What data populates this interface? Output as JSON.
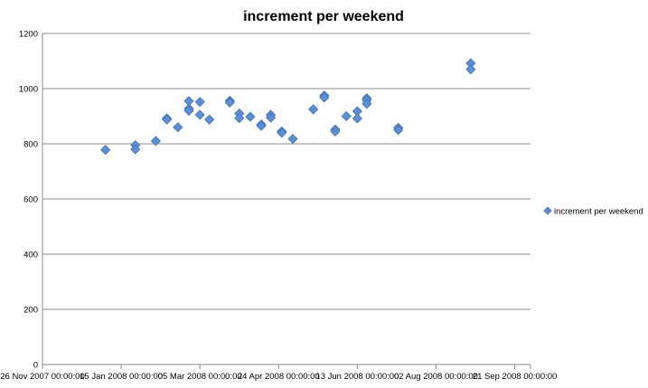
{
  "chart_data": {
    "type": "scatter",
    "title": "increment per weekend",
    "xlabel": "",
    "ylabel": "",
    "ylim": [
      0,
      1200
    ],
    "yticks": [
      0,
      200,
      400,
      600,
      800,
      1000,
      1200
    ],
    "xlim": [
      "2007-11-26",
      "2008-10-01"
    ],
    "xticks": [
      {
        "date": "2007-11-26",
        "label": "26 Nov 2007 00:00:00"
      },
      {
        "date": "2008-01-15",
        "label": "15 Jan 2008 00:00:00"
      },
      {
        "date": "2008-03-05",
        "label": "05 Mar 2008 00:00:00"
      },
      {
        "date": "2008-04-24",
        "label": "24 Apr 2008 00:00:00"
      },
      {
        "date": "2008-06-13",
        "label": "13 Jun 2008 00:00:00"
      },
      {
        "date": "2008-08-02",
        "label": "02 Aug 2008 00:00:00"
      },
      {
        "date": "2008-09-21",
        "label": "21 Sep 2008 00:00:00"
      }
    ],
    "grid": true,
    "legend_position": "right",
    "marker_color": "#5b8fd6",
    "series": [
      {
        "name": "increment per weekend",
        "points": [
          {
            "x": "2008-01-05",
            "y": 778
          },
          {
            "x": "2008-01-24",
            "y": 795
          },
          {
            "x": "2008-01-24",
            "y": 780
          },
          {
            "x": "2008-02-06",
            "y": 810
          },
          {
            "x": "2008-02-13",
            "y": 892
          },
          {
            "x": "2008-02-13",
            "y": 888
          },
          {
            "x": "2008-02-20",
            "y": 860
          },
          {
            "x": "2008-02-27",
            "y": 955
          },
          {
            "x": "2008-02-27",
            "y": 928
          },
          {
            "x": "2008-02-27",
            "y": 920
          },
          {
            "x": "2008-03-05",
            "y": 952
          },
          {
            "x": "2008-03-05",
            "y": 905
          },
          {
            "x": "2008-03-11",
            "y": 888
          },
          {
            "x": "2008-03-24",
            "y": 956
          },
          {
            "x": "2008-03-24",
            "y": 950
          },
          {
            "x": "2008-03-30",
            "y": 910
          },
          {
            "x": "2008-03-30",
            "y": 893
          },
          {
            "x": "2008-04-06",
            "y": 898
          },
          {
            "x": "2008-04-13",
            "y": 870
          },
          {
            "x": "2008-04-13",
            "y": 865
          },
          {
            "x": "2008-04-19",
            "y": 905
          },
          {
            "x": "2008-04-19",
            "y": 895
          },
          {
            "x": "2008-04-26",
            "y": 845
          },
          {
            "x": "2008-04-26",
            "y": 840
          },
          {
            "x": "2008-05-03",
            "y": 818
          },
          {
            "x": "2008-05-16",
            "y": 925
          },
          {
            "x": "2008-05-23",
            "y": 975
          },
          {
            "x": "2008-05-23",
            "y": 968
          },
          {
            "x": "2008-05-30",
            "y": 852
          },
          {
            "x": "2008-05-30",
            "y": 845
          },
          {
            "x": "2008-06-06",
            "y": 900
          },
          {
            "x": "2008-06-13",
            "y": 918
          },
          {
            "x": "2008-06-13",
            "y": 892
          },
          {
            "x": "2008-06-19",
            "y": 965
          },
          {
            "x": "2008-06-19",
            "y": 958
          },
          {
            "x": "2008-06-19",
            "y": 945
          },
          {
            "x": "2008-07-09",
            "y": 858
          },
          {
            "x": "2008-07-09",
            "y": 850
          },
          {
            "x": "2008-08-24",
            "y": 1092
          },
          {
            "x": "2008-08-24",
            "y": 1070
          }
        ]
      }
    ]
  }
}
